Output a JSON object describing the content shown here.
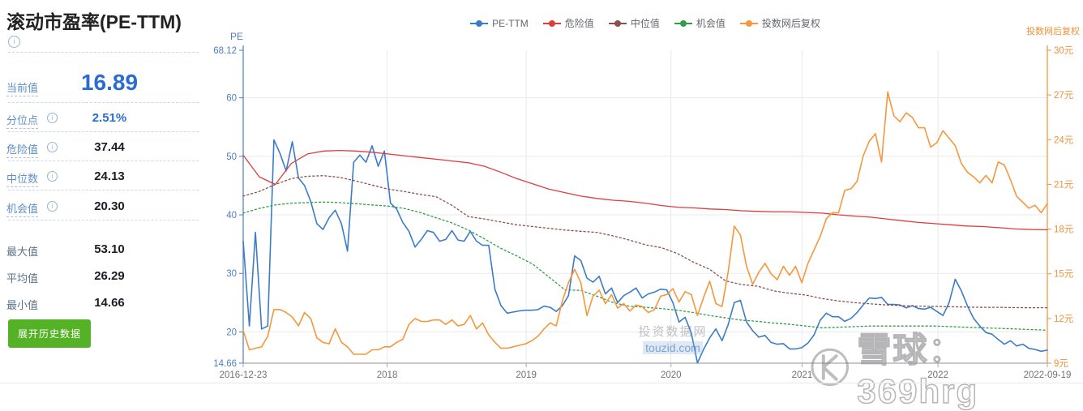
{
  "sidebar": {
    "title": "滚动市盈率(PE-TTM)",
    "stats_primary": [
      {
        "label": "当前值",
        "value": "16.89",
        "info": false
      },
      {
        "label": "分位点",
        "value": "2.51%",
        "info": true
      },
      {
        "label": "危险值",
        "value": "37.44",
        "info": true
      },
      {
        "label": "中位数",
        "value": "24.13",
        "info": true
      },
      {
        "label": "机会值",
        "value": "20.30",
        "info": true
      }
    ],
    "stats_secondary": [
      {
        "label": "最大值",
        "value": "53.10"
      },
      {
        "label": "平均值",
        "value": "26.29"
      },
      {
        "label": "最小值",
        "value": "14.66"
      }
    ],
    "button_label": "展开历史数据"
  },
  "chart": {
    "watermark_center_line1": "投资数据网",
    "watermark_center_line2": "touzid.com",
    "watermark_right_text": "雪球：369hrg"
  },
  "chart_data": {
    "type": "line",
    "title": "滚动市盈率(PE-TTM)",
    "x_domain": [
      "2016-12-23",
      "2022-09-19"
    ],
    "x_ticks": [
      {
        "label": "2016-12-23",
        "pos": 0,
        "grid": false
      },
      {
        "label": "2018",
        "pos": 0.179,
        "grid": true
      },
      {
        "label": "2019",
        "pos": 0.352,
        "grid": true
      },
      {
        "label": "2020",
        "pos": 0.532,
        "grid": true
      },
      {
        "label": "2021",
        "pos": 0.695,
        "grid": true
      },
      {
        "label": "2022",
        "pos": 0.864,
        "grid": true
      },
      {
        "label": "2022-09-19",
        "pos": 1,
        "grid": false
      }
    ],
    "left_axis": {
      "title": "PE",
      "min": 14.66,
      "max": 68.12,
      "color": "#4d7fc0",
      "ticks": [
        {
          "label": "68.12",
          "v": 68.12
        },
        {
          "label": "60",
          "v": 60
        },
        {
          "label": "50",
          "v": 50
        },
        {
          "label": "40",
          "v": 40
        },
        {
          "label": "30",
          "v": 30
        },
        {
          "label": "20",
          "v": 20
        },
        {
          "label": "14.66",
          "v": 14.66
        }
      ],
      "grid_values": [
        60,
        50,
        40,
        30,
        20
      ]
    },
    "right_axis": {
      "title": "投数网后复权",
      "unit": "元",
      "min": 9,
      "max": 30,
      "color": "#f0913a",
      "ticks": [
        {
          "label": "30元",
          "v": 30
        },
        {
          "label": "27元",
          "v": 27
        },
        {
          "label": "24元",
          "v": 24
        },
        {
          "label": "21元",
          "v": 21
        },
        {
          "label": "18元",
          "v": 18
        },
        {
          "label": "15元",
          "v": 15
        },
        {
          "label": "12元",
          "v": 12
        },
        {
          "label": "9元",
          "v": 9
        }
      ],
      "grid_values": []
    },
    "series": [
      {
        "name": "PE-TTM",
        "color": "#3b7cc9",
        "axis": "left",
        "style": "solid",
        "width": 1.6,
        "values": [
          35.5,
          21,
          37,
          20.5,
          21,
          52.8,
          50.5,
          47.5,
          52.5,
          46.3,
          45,
          42.3,
          38.5,
          37.5,
          39.5,
          40.8,
          38.5,
          33.8,
          49,
          50.2,
          49,
          51.8,
          48.3,
          50.9,
          42,
          41,
          38.7,
          37.2,
          34.5,
          35.8,
          37.3,
          37,
          35.5,
          35.8,
          37.3,
          35.7,
          35.5,
          37.2,
          35.5,
          34.8,
          34.8,
          27.3,
          24.5,
          23.2,
          23.4,
          23.6,
          23.7,
          23.7,
          23.8,
          24.4,
          24.2,
          23.5,
          24.5,
          26.2,
          33,
          32.2,
          29.2,
          28.5,
          29.5,
          26.5,
          27.5,
          25,
          26.2,
          26.8,
          27.5,
          25.8,
          26.5,
          26.8,
          27.3,
          27.2,
          25,
          21.7,
          22.5,
          19.8,
          14.7,
          17,
          19,
          20.5,
          18.5,
          21.2,
          25,
          25.4,
          21.7,
          20.2,
          19.1,
          19.4,
          18.2,
          17.9,
          18,
          17.1,
          17.1,
          17.3,
          18.1,
          19.5,
          22,
          23.2,
          22.6,
          22.6,
          21.8,
          22.3,
          23.3,
          24.6,
          25.8,
          25.7,
          25.9,
          24.7,
          24.7,
          24.6,
          24.1,
          24.5,
          24,
          23.9,
          24.2,
          23.5,
          22.8,
          25,
          29,
          27,
          24.4,
          22.3,
          21,
          19.9,
          19.6,
          18.7,
          17.9,
          18.5,
          17.6,
          17.9,
          17.2,
          17,
          16.7,
          16.89
        ]
      },
      {
        "name": "危险值",
        "color": "#e23b3c",
        "axis": "left",
        "style": "solid",
        "width": 1.3,
        "values": [
          50.2,
          46.5,
          45.2,
          48.8,
          50.4,
          50.9,
          51,
          50.9,
          50.7,
          50.4,
          50.1,
          49.8,
          49.5,
          49.2,
          48.9,
          48.3,
          47.3,
          46.2,
          45.3,
          44.4,
          43.8,
          43.2,
          42.8,
          42.5,
          42.3,
          42,
          41.6,
          41.3,
          41.2,
          41,
          40.9,
          40.7,
          40.6,
          40.5,
          40.5,
          40.4,
          40.3,
          40,
          39.8,
          39.6,
          39.3,
          39,
          38.7,
          38.5,
          38.3,
          38.1,
          38,
          37.8,
          37.6,
          37.5,
          37.44
        ]
      },
      {
        "name": "中位值",
        "color": "#8b5049",
        "axis": "left",
        "style": "dotted",
        "width": 1.3,
        "values": [
          43.2,
          44,
          45.2,
          46.2,
          46.6,
          46.7,
          46.4,
          45.8,
          45.1,
          44.4,
          44,
          43.5,
          43.1,
          41.6,
          39.7,
          39.3,
          38.8,
          38.3,
          38,
          37.7,
          37.4,
          37.2,
          37,
          36.4,
          35.7,
          34.9,
          34.4,
          33.4,
          31.9,
          30.7,
          28.7,
          28.1,
          27.8,
          27,
          26.6,
          26.3,
          25.7,
          25.3,
          25,
          24.8,
          24.6,
          24.5,
          24.4,
          24.35,
          24.3,
          24.25,
          24.2,
          24.2,
          24.15,
          24.14,
          24.13
        ]
      },
      {
        "name": "机会值",
        "color": "#2f9e44",
        "axis": "left",
        "style": "dotted",
        "width": 1.3,
        "values": [
          40.3,
          41.1,
          41.7,
          42,
          42.1,
          42.2,
          42.1,
          41.9,
          41.7,
          41.5,
          41.1,
          40.4,
          39.5,
          38.6,
          37.4,
          35.9,
          34.3,
          33,
          31.6,
          29.4,
          27.2,
          27.1,
          26.1,
          25,
          24.4,
          24.2,
          24,
          23.7,
          23.3,
          22.8,
          22.4,
          22,
          21.8,
          21.5,
          21.3,
          21,
          20.7,
          20.8,
          20.9,
          21,
          21,
          21,
          21,
          21,
          20.9,
          20.8,
          20.7,
          20.6,
          20.5,
          20.4,
          20.3
        ]
      },
      {
        "name": "投数网后复权",
        "color": "#f6973c",
        "axis": "right",
        "style": "solid",
        "width": 1.6,
        "values": [
          11.2,
          9.9,
          10,
          10.1,
          10.8,
          12.6,
          12.6,
          12.4,
          12.1,
          11.5,
          12.4,
          12,
          10.7,
          10.4,
          10.3,
          11.3,
          10.4,
          10.1,
          9.6,
          9.6,
          9.6,
          9.9,
          9.9,
          10.1,
          10.1,
          10.4,
          10.6,
          11.6,
          12,
          11.8,
          11.8,
          11.9,
          11.9,
          11.6,
          11.9,
          11.5,
          11.6,
          12.2,
          11.3,
          11.7,
          10.9,
          10.4,
          10,
          10,
          10.1,
          10.2,
          10.3,
          10.5,
          10.8,
          11.3,
          11.7,
          11.5,
          13.2,
          14.4,
          15.3,
          14.4,
          12.2,
          13.5,
          13.9,
          13,
          13.6,
          12.7,
          13,
          12.5,
          12.9,
          12.8,
          12.4,
          12.6,
          13.5,
          13.6,
          14,
          13.1,
          13.8,
          13.6,
          12.2,
          13.4,
          14.5,
          13,
          12.8,
          15.1,
          18.2,
          17.6,
          15.5,
          14.3,
          15.1,
          15.7,
          15,
          14.6,
          15.5,
          14.9,
          15.5,
          14.4,
          15.7,
          16.6,
          17.5,
          18.7,
          19.1,
          19.1,
          20.6,
          20.7,
          21.2,
          22.9,
          23.9,
          24.4,
          22.5,
          27.2,
          25.6,
          25.2,
          25.8,
          25.5,
          24.8,
          24.8,
          23.5,
          23.8,
          24.6,
          24.1,
          23.6,
          22.4,
          21.8,
          21.5,
          21.1,
          21.6,
          21.1,
          22.5,
          22.3,
          21.3,
          20.2,
          19.8,
          19.4,
          19.6,
          19.1,
          19.7
        ]
      }
    ],
    "legend_position": "top-center",
    "grid": true
  }
}
